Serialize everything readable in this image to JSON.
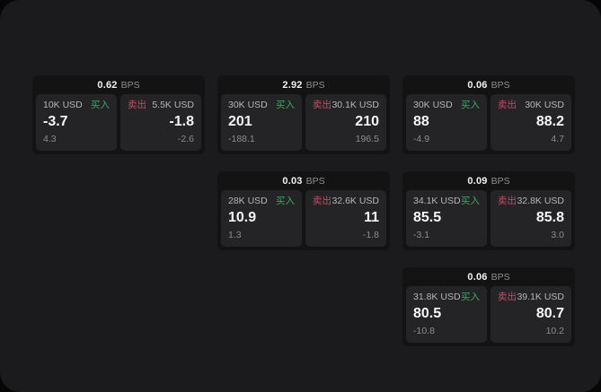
{
  "colors": {
    "window_bg": "#1b1b1d",
    "card_bg": "#131314",
    "panel_bg": "#242426",
    "buy_green": "#3da767",
    "sell_red": "#c44d63",
    "value_white": "#f5f5f5",
    "muted_gray": "#8c8c8c",
    "label_gray": "#b5b5b5"
  },
  "cards": [
    {
      "bps_value": "0.62",
      "bps_unit": "BPS",
      "buy": {
        "size": "10K USD",
        "side_label": "买入",
        "price": "-3.7",
        "change": "4.3"
      },
      "sell": {
        "size": "5.5K USD",
        "side_label": "卖出",
        "price": "-1.8",
        "change": "-2.6"
      }
    },
    {
      "bps_value": "2.92",
      "bps_unit": "BPS",
      "buy": {
        "size": "30K USD",
        "side_label": "买入",
        "price": "201",
        "change": "-188.1"
      },
      "sell": {
        "size": "30.1K USD",
        "side_label": "卖出",
        "price": "210",
        "change": "196.5"
      }
    },
    {
      "bps_value": "0.06",
      "bps_unit": "BPS",
      "buy": {
        "size": "30K USD",
        "side_label": "买入",
        "price": "88",
        "change": "-4.9"
      },
      "sell": {
        "size": "30K USD",
        "side_label": "卖出",
        "price": "88.2",
        "change": "4.7"
      }
    },
    {
      "bps_value": "0.03",
      "bps_unit": "BPS",
      "buy": {
        "size": "28K USD",
        "side_label": "买入",
        "price": "10.9",
        "change": "1.3"
      },
      "sell": {
        "size": "32.6K USD",
        "side_label": "卖出",
        "price": "11",
        "change": "-1.8"
      }
    },
    {
      "bps_value": "0.09",
      "bps_unit": "BPS",
      "buy": {
        "size": "34.1K USD",
        "side_label": "买入",
        "price": "85.5",
        "change": "-3.1"
      },
      "sell": {
        "size": "32.8K USD",
        "side_label": "卖出",
        "price": "85.8",
        "change": "3.0"
      }
    },
    {
      "bps_value": "0.06",
      "bps_unit": "BPS",
      "buy": {
        "size": "31.8K USD",
        "side_label": "买入",
        "price": "80.5",
        "change": "-10.8"
      },
      "sell": {
        "size": "39.1K USD",
        "side_label": "卖出",
        "price": "80.7",
        "change": "10.2"
      }
    }
  ]
}
